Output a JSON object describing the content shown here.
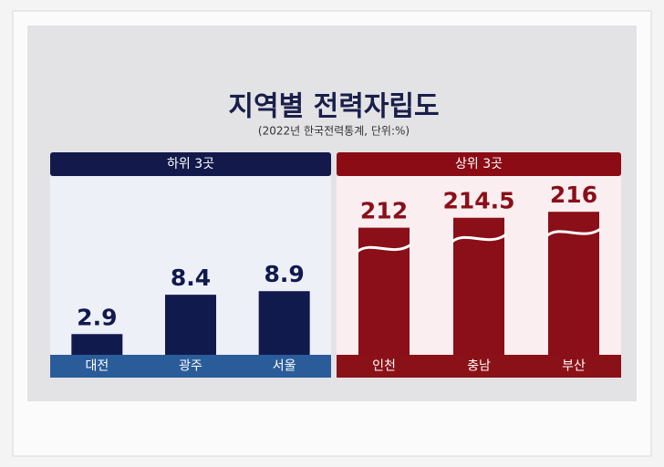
{
  "header": {
    "title": "지역별 전력자립도",
    "subtitle": "(2022년 한국전력통계, 단위:%)"
  },
  "chart_data": [
    {
      "type": "bar",
      "title": "하위 3곳",
      "categories": [
        "대전",
        "광주",
        "서울"
      ],
      "values": [
        2.9,
        8.4,
        8.9
      ],
      "color": "#111a4d",
      "ylim": [
        0,
        25
      ],
      "axis_break": false
    },
    {
      "type": "bar",
      "title": "상위 3곳",
      "categories": [
        "인천",
        "충남",
        "부산"
      ],
      "values": [
        212,
        214.5,
        216
      ],
      "color": "#8a0f18",
      "ylim": [
        180,
        225
      ],
      "axis_break": true
    }
  ]
}
